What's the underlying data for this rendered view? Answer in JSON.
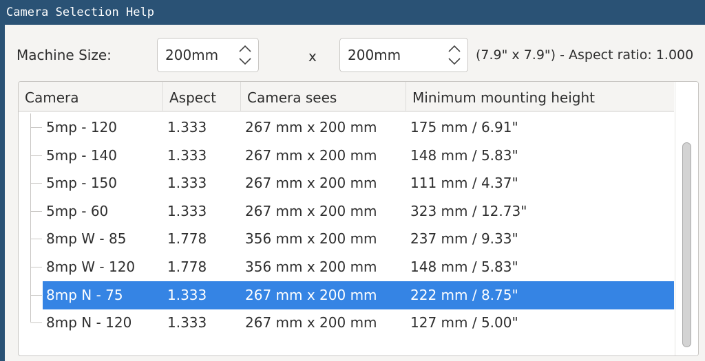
{
  "window": {
    "title": "Camera Selection Help"
  },
  "machine": {
    "label": "Machine Size:",
    "width": "200mm",
    "separator": "x",
    "height": "200mm",
    "info": "(7.9\" x 7.9\") - Aspect ratio: 1.000"
  },
  "table": {
    "columns": [
      "Camera",
      "Aspect",
      "Camera sees",
      "Minimum mounting height"
    ],
    "rows": [
      [
        "5mp - 120",
        "1.333",
        "267 mm x 200 mm",
        "175 mm / 6.91\""
      ],
      [
        "5mp - 140",
        "1.333",
        "267 mm x 200 mm",
        "148 mm / 5.83\""
      ],
      [
        "5mp - 150",
        "1.333",
        "267 mm x 200 mm",
        "111 mm / 4.37\""
      ],
      [
        "5mp - 60",
        "1.333",
        "267 mm x 200 mm",
        "323 mm / 12.73\""
      ],
      [
        "8mp W - 85",
        "1.778",
        "356 mm x 200 mm",
        "237 mm / 9.33\""
      ],
      [
        "8mp W - 120",
        "1.778",
        "356 mm x 200 mm",
        "148 mm / 5.83\""
      ],
      [
        "8mp N - 75",
        "1.333",
        "267 mm x 200 mm",
        "222 mm / 8.75\""
      ],
      [
        "8mp N - 120",
        "1.333",
        "267 mm x 200 mm",
        "127 mm / 5.00\""
      ]
    ],
    "selected_index": 6
  },
  "colors": {
    "titlebar": "#2a5275",
    "selection": "#3584e4"
  }
}
